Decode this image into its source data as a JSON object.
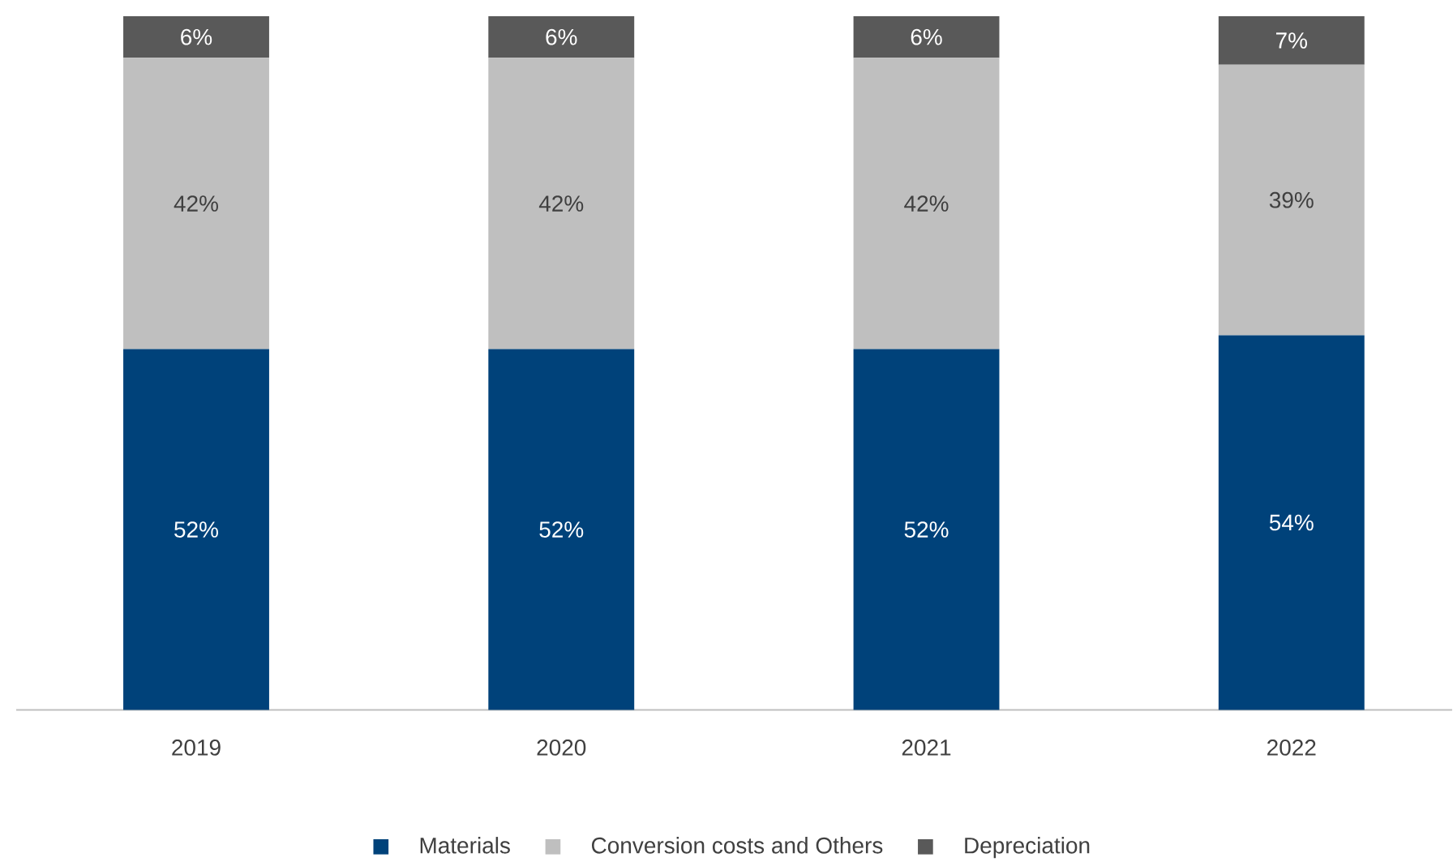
{
  "chart_data": {
    "type": "bar",
    "stacked": true,
    "legend": "bottom",
    "categories": [
      "2019",
      "2020",
      "2021",
      "2022"
    ],
    "series": [
      {
        "name": "Materials",
        "color": "#00427a",
        "values": [
          52,
          52,
          52,
          54
        ],
        "value_labels": [
          "52%",
          "52%",
          "52%",
          "54%"
        ]
      },
      {
        "name": "Conversion costs and Others",
        "color": "#bfbfbf",
        "values": [
          42,
          42,
          42,
          39
        ],
        "value_labels": [
          "42%",
          "42%",
          "42%",
          "39%"
        ]
      },
      {
        "name": "Depreciation",
        "color": "#595959",
        "values": [
          6,
          6,
          6,
          7
        ],
        "value_labels": [
          "6%",
          "6%",
          "6%",
          "7%"
        ]
      }
    ]
  }
}
